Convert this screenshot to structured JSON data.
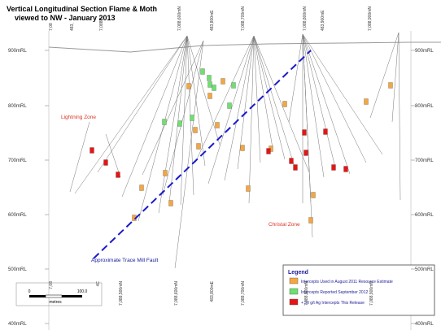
{
  "header": {
    "title": "Vertical Longitudinal Section Flame & Moth",
    "subtitle": "viewed to NW - January 2013"
  },
  "elevations": [
    "900mRL",
    "800mRL",
    "700mRL",
    "600mRL",
    "500mRL",
    "400mRL"
  ],
  "top_coordinates": [
    "7,08",
    "483,",
    "7,088,5",
    "7,088,600mN",
    "483,800mE",
    "7,088,700mN",
    "7,088,800mN",
    "483,900mE",
    "7,088,900mN"
  ],
  "bottom_coordinates": [
    "7,08",
    "4C",
    "7,088,500mN",
    "7,088,600mN",
    "483,800mE",
    "7,088,700mN",
    "7,088,800mN",
    "7,088,900mN"
  ],
  "zones": {
    "lightning": "Lightning Zone",
    "christal": "Christal Zone",
    "fault": "Approximate Trace Mill Fault"
  },
  "legend": {
    "title": "Legend",
    "items": [
      "Intercepts Used in August 2011 Resource Estimate",
      "Intercepts Reported September 2012",
      "+ 30 g/t Ag Intercepts This Release"
    ]
  },
  "scale": {
    "start": "0",
    "end": "100.0",
    "unit": "metres"
  }
}
